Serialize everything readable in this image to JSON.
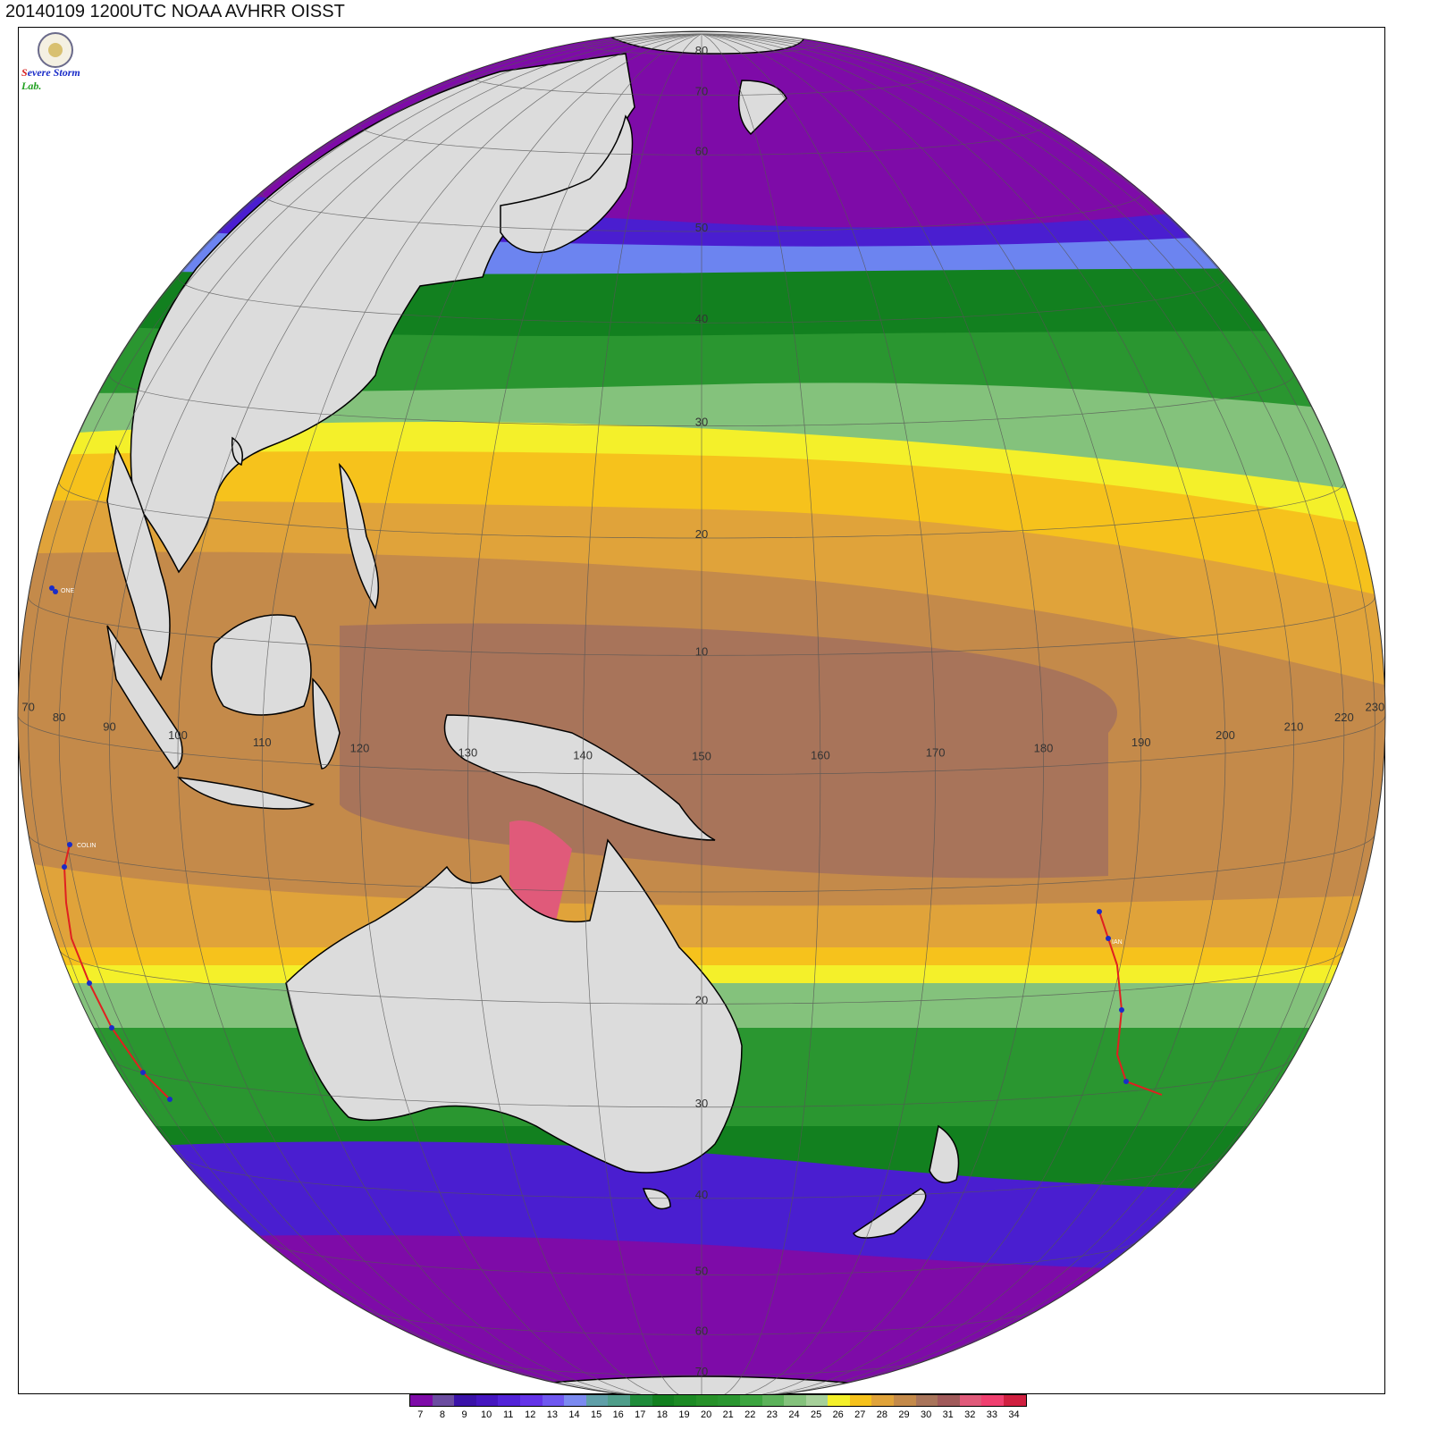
{
  "title": "20140109 1200UTC NOAA AVHRR OISST",
  "logo": {
    "letters": [
      "S",
      "evere",
      "S",
      "torm",
      "Lab."
    ]
  },
  "longitude_labels": [
    "70",
    "80",
    "90",
    "100",
    "110",
    "120",
    "130",
    "140",
    "150",
    "160",
    "170",
    "180",
    "190",
    "200",
    "210",
    "220",
    "230"
  ],
  "latitude_labels_north": [
    "10",
    "20",
    "30",
    "40",
    "50",
    "60",
    "70",
    "80"
  ],
  "latitude_labels_south": [
    "20",
    "30",
    "40",
    "50",
    "60",
    "70"
  ],
  "colorbar": {
    "values": [
      "7",
      "8",
      "9",
      "10",
      "11",
      "12",
      "13",
      "14",
      "15",
      "16",
      "17",
      "18",
      "19",
      "20",
      "21",
      "22",
      "23",
      "24",
      "25",
      "26",
      "27",
      "28",
      "29",
      "30",
      "31",
      "32",
      "33",
      "34"
    ],
    "colors": [
      "#7e0ba8",
      "#6b4ca0",
      "#3a12a8",
      "#4516c0",
      "#5223d8",
      "#6434e8",
      "#6f58f0",
      "#7b8af0",
      "#5f9fa8",
      "#4f9e8a",
      "#1f8c3a",
      "#12801f",
      "#1c8a24",
      "#279129",
      "#2a9630",
      "#3da540",
      "#5cb25a",
      "#84c27c",
      "#a6d09a",
      "#f4f02a",
      "#f6c21c",
      "#e0a33a",
      "#c48a4a",
      "#a8745a",
      "#a05a5a",
      "#e05a7a",
      "#f04070",
      "#d02040"
    ]
  },
  "storms": [
    {
      "name": "ONE"
    },
    {
      "name": "COLIN"
    },
    {
      "name": "IAN"
    }
  ],
  "colors": {
    "land": "#dcdcdc",
    "coast": "#000000",
    "grid": "#555555",
    "sea_boundary": "#dcdcdc"
  }
}
